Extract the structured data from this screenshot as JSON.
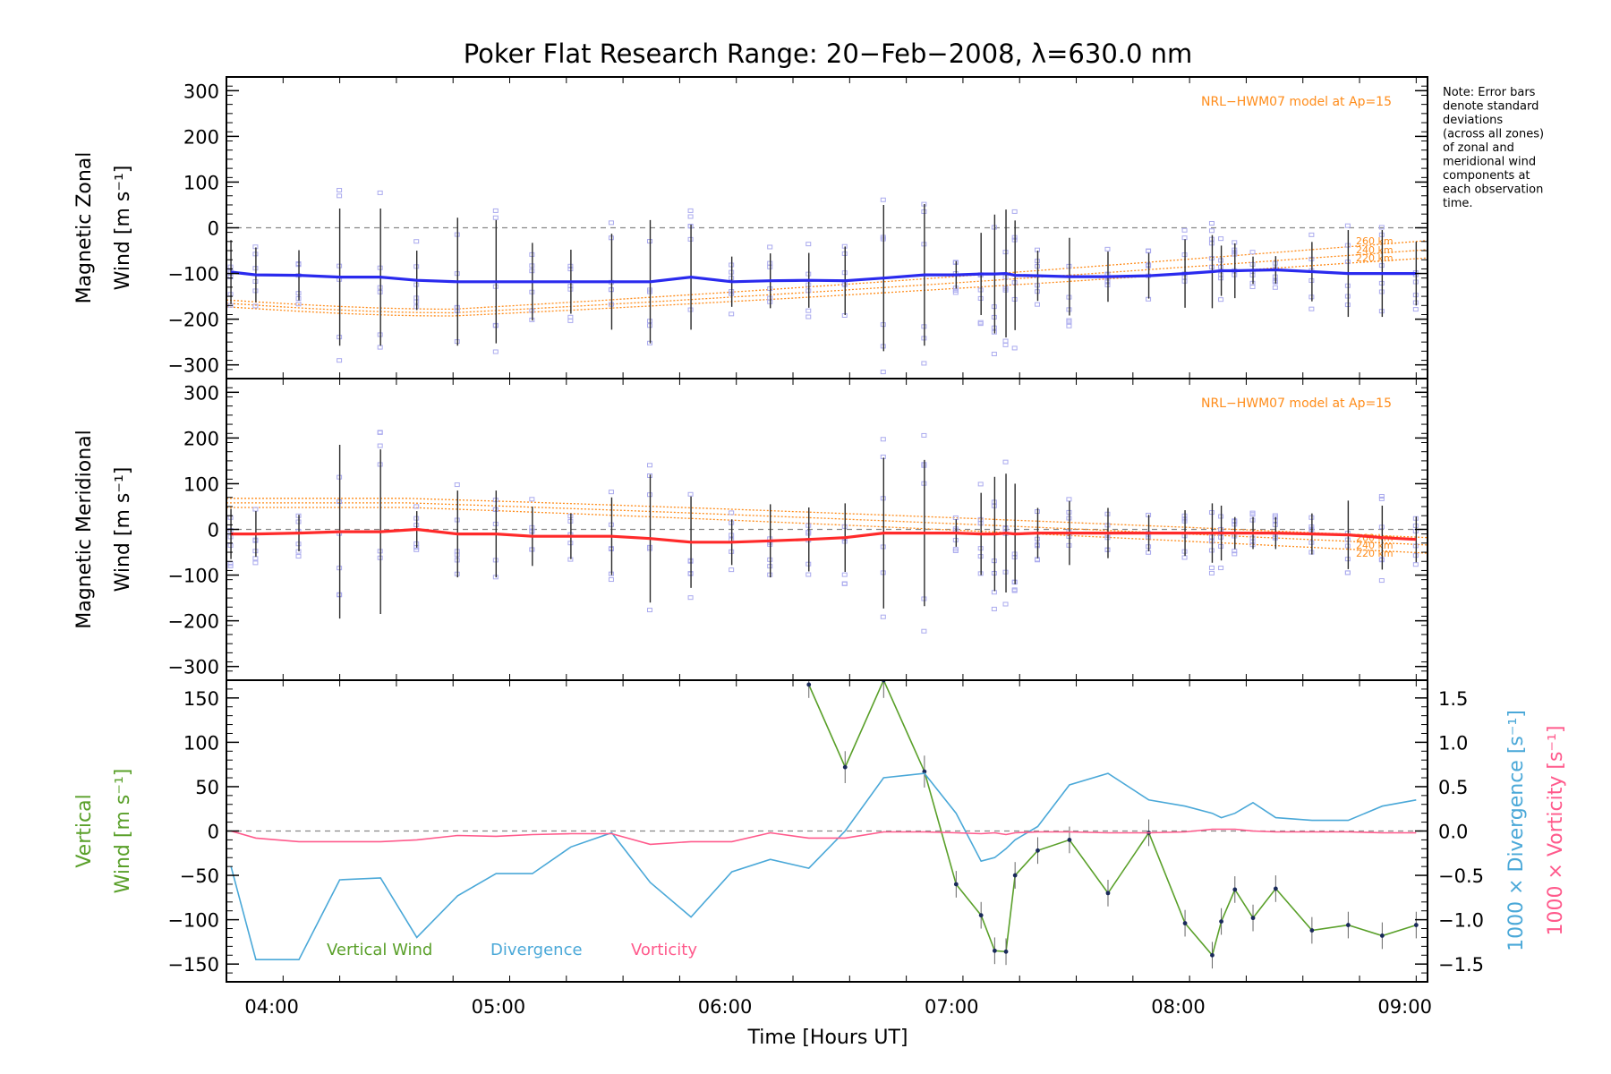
{
  "title": "Poker Flat Research Range: 20−Feb−2008, λ=630.0 nm",
  "note_lines": [
    "Note: Error bars",
    "denote standard",
    "deviations",
    "(across all zones)",
    "of zonal and",
    "meridional wind",
    "components at",
    "each observation",
    "time."
  ],
  "xlabel": "Time [Hours UT]",
  "x_ticks": [
    "04:00",
    "05:00",
    "06:00",
    "07:00",
    "08:00",
    "09:00"
  ],
  "x_tick_hours": [
    4,
    5,
    6,
    7,
    8,
    9
  ],
  "model_label": "NRL−HWM07 model at Ap=15",
  "colors": {
    "zonal": "#2a2aee",
    "meridional": "#ff2a2a",
    "vertical": "#5aa02a",
    "divergence": "#4aa8d8",
    "vorticity": "#ff5a8c",
    "model": "#ff8c1a",
    "samples": "#aaaaee"
  },
  "chart_data": [
    {
      "type": "line",
      "panel": "zonal",
      "ylabel_lines": [
        "Magnetic Zonal",
        "Wind [m s⁻¹]"
      ],
      "ylim": [
        -330,
        330
      ],
      "y_ticks": [
        300,
        200,
        100,
        0,
        -100,
        -200,
        -300
      ],
      "zero_line": true,
      "x_hours": [
        3.82,
        3.93,
        4.12,
        4.3,
        4.48,
        4.64,
        4.82,
        4.99,
        5.15,
        5.32,
        5.5,
        5.67,
        5.85,
        6.03,
        6.2,
        6.37,
        6.53,
        6.7,
        6.88,
        7.02,
        7.13,
        7.19,
        7.24,
        7.28,
        7.38,
        7.52,
        7.69,
        7.87,
        8.03,
        8.15,
        8.19,
        8.25,
        8.33,
        8.43,
        8.59,
        8.75,
        8.9,
        9.05
      ],
      "series": [
        {
          "name": "",
          "values": [
            -97,
            -103,
            -104,
            -108,
            -108,
            -115,
            -118,
            -118,
            -118,
            -118,
            -118,
            -118,
            -108,
            -118,
            -116,
            -115,
            -116,
            -110,
            -103,
            -103,
            -101,
            -101,
            -100,
            -104,
            -105,
            -107,
            -107,
            -105,
            -100,
            -96,
            -94,
            -94,
            -93,
            -92,
            -96,
            -100,
            -100,
            -100
          ]
        }
      ],
      "error_bars": [
        70,
        60,
        55,
        150,
        150,
        65,
        140,
        135,
        85,
        70,
        105,
        135,
        115,
        55,
        60,
        60,
        75,
        160,
        155,
        30,
        90,
        130,
        140,
        120,
        55,
        85,
        55,
        50,
        75,
        80,
        55,
        60,
        30,
        30,
        65,
        95,
        95,
        70
      ],
      "model": {
        "altitudes": [
          "260 km",
          "240 km",
          "220 km"
        ],
        "start": [
          -158,
          -165,
          -173
        ],
        "mid": [
          -178,
          -186,
          -193
        ],
        "end": [
          -28,
          -48,
          -66
        ],
        "mid_hour": 4.8
      }
    },
    {
      "type": "line",
      "panel": "meridional",
      "ylabel_lines": [
        "Magnetic Meridional",
        "Wind [m s⁻¹]"
      ],
      "ylim": [
        -330,
        330
      ],
      "y_ticks": [
        300,
        200,
        100,
        0,
        -100,
        -200,
        -300
      ],
      "zero_line": true,
      "x_hours": [
        3.82,
        3.93,
        4.12,
        4.3,
        4.48,
        4.64,
        4.82,
        4.99,
        5.15,
        5.32,
        5.5,
        5.67,
        5.85,
        6.03,
        6.2,
        6.37,
        6.53,
        6.7,
        6.88,
        7.02,
        7.13,
        7.19,
        7.24,
        7.28,
        7.38,
        7.52,
        7.69,
        7.87,
        8.03,
        8.15,
        8.19,
        8.25,
        8.33,
        8.43,
        8.59,
        8.75,
        8.9,
        9.05
      ],
      "series": [
        {
          "name": "",
          "values": [
            -10,
            -10,
            -8,
            -5,
            -5,
            0,
            -10,
            -10,
            -15,
            -15,
            -15,
            -20,
            -28,
            -28,
            -25,
            -22,
            -18,
            -8,
            -8,
            -8,
            -10,
            -10,
            -8,
            -10,
            -8,
            -8,
            -8,
            -8,
            -8,
            -8,
            -8,
            -8,
            -8,
            -8,
            -10,
            -12,
            -18,
            -22
          ]
        }
      ],
      "error_bars": [
        55,
        50,
        40,
        190,
        180,
        40,
        95,
        95,
        65,
        50,
        85,
        140,
        100,
        50,
        80,
        70,
        75,
        165,
        160,
        30,
        90,
        125,
        130,
        110,
        55,
        70,
        55,
        40,
        50,
        65,
        60,
        35,
        35,
        35,
        45,
        75,
        70,
        50
      ],
      "model": {
        "altitudes": [
          "260 km",
          "240 km",
          "220 km"
        ],
        "start": [
          68,
          58,
          48
        ],
        "mid": [
          68,
          58,
          48
        ],
        "end": [
          -18,
          -34,
          -52
        ],
        "mid_hour": 4.6
      }
    },
    {
      "type": "line",
      "panel": "vertical",
      "ylabel_lines": [
        "Vertical",
        "Wind [m s⁻¹]"
      ],
      "y2label_lines": [
        "1000 × Divergence [s⁻¹]",
        "1000 × Vorticity [s⁻¹]"
      ],
      "ylim": [
        -170,
        170
      ],
      "y_ticks": [
        150,
        100,
        50,
        0,
        -50,
        -100,
        -150
      ],
      "y2lim": [
        -1.7,
        1.7
      ],
      "y2_ticks": [
        "1.5",
        "1.0",
        "0.5",
        "0.0",
        "−0.5",
        "−1.0",
        "−1.5"
      ],
      "y2_tick_values": [
        1.5,
        1.0,
        0.5,
        0.0,
        -0.5,
        -1.0,
        -1.5
      ],
      "zero_line": true,
      "legend": [
        "Vertical Wind",
        "Divergence",
        "Vorticity"
      ],
      "series": [
        {
          "name": "Vertical Wind",
          "axis": "left",
          "x": [
            6.37,
            6.53,
            6.7,
            6.88,
            7.02,
            7.13,
            7.19,
            7.24,
            7.28,
            7.38,
            7.52,
            7.69,
            7.87,
            8.03,
            8.15,
            8.19,
            8.25,
            8.33,
            8.43,
            8.59,
            8.75,
            8.9,
            9.05
          ],
          "values": [
            165,
            72,
            170,
            67,
            -60,
            -95,
            -135,
            -136,
            -50,
            -22,
            -10,
            -70,
            -2,
            -104,
            -140,
            -102,
            -66,
            -98,
            -65,
            -112,
            -106,
            -118,
            -106
          ],
          "error_bars": [
            15,
            18,
            20,
            18,
            15,
            15,
            15,
            15,
            15,
            15,
            15,
            15,
            15,
            15,
            15,
            15,
            15,
            15,
            15,
            15,
            15,
            15,
            15
          ]
        },
        {
          "name": "Divergence",
          "axis": "right",
          "x": [
            3.82,
            3.93,
            4.12,
            4.3,
            4.48,
            4.64,
            4.82,
            4.99,
            5.15,
            5.32,
            5.5,
            5.67,
            5.85,
            6.03,
            6.2,
            6.37,
            6.53,
            6.7,
            6.88,
            7.02,
            7.13,
            7.19,
            7.24,
            7.28,
            7.38,
            7.52,
            7.69,
            7.87,
            8.03,
            8.15,
            8.19,
            8.25,
            8.33,
            8.43,
            8.59,
            8.75,
            8.9,
            9.05
          ],
          "values": [
            -0.4,
            -1.45,
            -1.45,
            -0.55,
            -0.53,
            -1.2,
            -0.73,
            -0.48,
            -0.48,
            -0.18,
            -0.02,
            -0.58,
            -0.97,
            -0.46,
            -0.32,
            -0.42,
            0.0,
            0.6,
            0.65,
            0.2,
            -0.34,
            -0.3,
            -0.2,
            -0.1,
            0.05,
            0.52,
            0.65,
            0.35,
            0.28,
            0.2,
            0.15,
            0.2,
            0.32,
            0.15,
            0.12,
            0.12,
            0.28,
            0.35
          ]
        },
        {
          "name": "Vorticity",
          "axis": "right",
          "x": [
            3.82,
            3.93,
            4.12,
            4.3,
            4.48,
            4.64,
            4.82,
            4.99,
            5.15,
            5.32,
            5.5,
            5.67,
            5.85,
            6.03,
            6.2,
            6.37,
            6.53,
            6.7,
            6.88,
            7.02,
            7.13,
            7.19,
            7.24,
            7.28,
            7.38,
            7.52,
            7.69,
            7.87,
            8.03,
            8.15,
            8.19,
            8.25,
            8.33,
            8.43,
            8.59,
            8.75,
            8.9,
            9.05
          ],
          "values": [
            0.0,
            -0.08,
            -0.12,
            -0.12,
            -0.12,
            -0.1,
            -0.05,
            -0.06,
            -0.04,
            -0.03,
            -0.03,
            -0.15,
            -0.12,
            -0.12,
            -0.02,
            -0.08,
            -0.08,
            -0.01,
            -0.01,
            -0.02,
            -0.03,
            -0.02,
            -0.04,
            -0.02,
            -0.01,
            -0.01,
            -0.02,
            -0.02,
            -0.01,
            0.02,
            0.02,
            0.02,
            0.0,
            -0.01,
            -0.01,
            -0.01,
            -0.02,
            -0.02
          ]
        }
      ]
    }
  ]
}
